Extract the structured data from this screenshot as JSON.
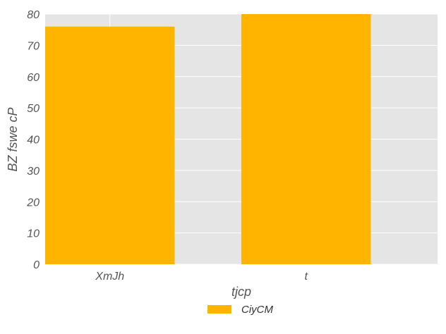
{
  "chart_data": {
    "type": "bar",
    "categories": [
      "XmJh",
      "t"
    ],
    "series": [
      {
        "name": "CiyCM",
        "values": [
          76,
          80
        ],
        "color": "#ffb400"
      }
    ],
    "xlabel": "tjcp",
    "ylabel": "BZ fswe cP",
    "ylim": [
      0,
      80
    ],
    "yticks": [
      0,
      10,
      20,
      30,
      40,
      50,
      60,
      70,
      80
    ],
    "grid": true,
    "background": "#e5e5e5",
    "grid_color": "#ffffff",
    "legend": {
      "placement": "bottom-center"
    }
  }
}
